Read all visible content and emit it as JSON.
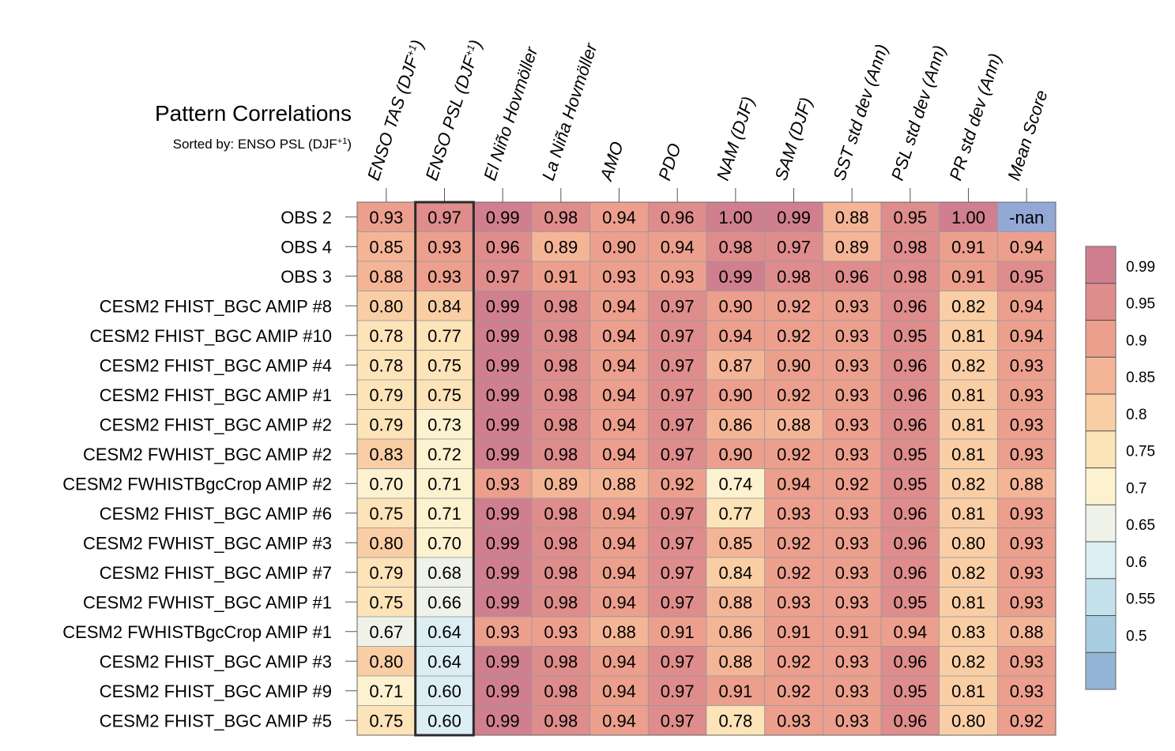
{
  "chart_data": {
    "type": "heatmap",
    "title": "Pattern Correlations",
    "subtitle": "Sorted by: ENSO PSL (DJF",
    "subtitle_sup": "+1",
    "subtitle_end": ")",
    "sorted_column_index": 1,
    "columns": [
      {
        "label": "ENSO TAS (DJF",
        "sup": "+1",
        "end": ")"
      },
      {
        "label": "ENSO PSL (DJF",
        "sup": "+1",
        "end": ")"
      },
      {
        "label": "El Niño Hovmöller",
        "sup": "",
        "end": ""
      },
      {
        "label": "La Niña Hovmöller",
        "sup": "",
        "end": ""
      },
      {
        "label": "AMO",
        "sup": "",
        "end": ""
      },
      {
        "label": "PDO",
        "sup": "",
        "end": ""
      },
      {
        "label": "NAM (DJF)",
        "sup": "",
        "end": ""
      },
      {
        "label": "SAM (DJF)",
        "sup": "",
        "end": ""
      },
      {
        "label": "SST std dev (Ann)",
        "sup": "",
        "end": ""
      },
      {
        "label": "PSL std dev (Ann)",
        "sup": "",
        "end": ""
      },
      {
        "label": "PR std dev (Ann)",
        "sup": "",
        "end": ""
      },
      {
        "label": "Mean Score",
        "sup": "",
        "end": ""
      }
    ],
    "rows": [
      "OBS 2",
      "OBS 4",
      "OBS 3",
      "CESM2 FHIST_BGC AMIP #8",
      "CESM2 FHIST_BGC AMIP #10",
      "CESM2 FHIST_BGC AMIP #4",
      "CESM2 FHIST_BGC AMIP #1",
      "CESM2 FHIST_BGC AMIP #2",
      "CESM2 FWHIST_BGC AMIP #2",
      "CESM2 FWHISTBgcCrop AMIP #2",
      "CESM2 FHIST_BGC AMIP #6",
      "CESM2 FWHIST_BGC AMIP #3",
      "CESM2 FHIST_BGC AMIP #7",
      "CESM2 FWHIST_BGC AMIP #1",
      "CESM2 FWHISTBgcCrop AMIP #1",
      "CESM2 FHIST_BGC AMIP #3",
      "CESM2 FHIST_BGC AMIP #9",
      "CESM2 FHIST_BGC AMIP #5"
    ],
    "values": [
      [
        "0.93",
        "0.97",
        "0.99",
        "0.98",
        "0.94",
        "0.96",
        "1.00",
        "0.99",
        "0.88",
        "0.95",
        "1.00",
        "-nan"
      ],
      [
        "0.85",
        "0.93",
        "0.96",
        "0.89",
        "0.90",
        "0.94",
        "0.98",
        "0.97",
        "0.89",
        "0.98",
        "0.91",
        "0.94"
      ],
      [
        "0.88",
        "0.93",
        "0.97",
        "0.91",
        "0.93",
        "0.93",
        "0.99",
        "0.98",
        "0.96",
        "0.98",
        "0.91",
        "0.95"
      ],
      [
        "0.80",
        "0.84",
        "0.99",
        "0.98",
        "0.94",
        "0.97",
        "0.90",
        "0.92",
        "0.93",
        "0.96",
        "0.82",
        "0.94"
      ],
      [
        "0.78",
        "0.77",
        "0.99",
        "0.98",
        "0.94",
        "0.97",
        "0.94",
        "0.92",
        "0.93",
        "0.95",
        "0.81",
        "0.94"
      ],
      [
        "0.78",
        "0.75",
        "0.99",
        "0.98",
        "0.94",
        "0.97",
        "0.87",
        "0.90",
        "0.93",
        "0.96",
        "0.82",
        "0.93"
      ],
      [
        "0.79",
        "0.75",
        "0.99",
        "0.98",
        "0.94",
        "0.97",
        "0.90",
        "0.92",
        "0.93",
        "0.96",
        "0.81",
        "0.93"
      ],
      [
        "0.79",
        "0.73",
        "0.99",
        "0.98",
        "0.94",
        "0.97",
        "0.86",
        "0.88",
        "0.93",
        "0.96",
        "0.81",
        "0.93"
      ],
      [
        "0.83",
        "0.72",
        "0.99",
        "0.98",
        "0.94",
        "0.97",
        "0.90",
        "0.92",
        "0.93",
        "0.95",
        "0.81",
        "0.93"
      ],
      [
        "0.70",
        "0.71",
        "0.93",
        "0.89",
        "0.88",
        "0.92",
        "0.74",
        "0.94",
        "0.92",
        "0.95",
        "0.82",
        "0.88"
      ],
      [
        "0.75",
        "0.71",
        "0.99",
        "0.98",
        "0.94",
        "0.97",
        "0.77",
        "0.93",
        "0.93",
        "0.96",
        "0.81",
        "0.93"
      ],
      [
        "0.80",
        "0.70",
        "0.99",
        "0.98",
        "0.94",
        "0.97",
        "0.85",
        "0.92",
        "0.93",
        "0.96",
        "0.80",
        "0.93"
      ],
      [
        "0.79",
        "0.68",
        "0.99",
        "0.98",
        "0.94",
        "0.97",
        "0.84",
        "0.92",
        "0.93",
        "0.96",
        "0.82",
        "0.93"
      ],
      [
        "0.75",
        "0.66",
        "0.99",
        "0.98",
        "0.94",
        "0.97",
        "0.88",
        "0.93",
        "0.93",
        "0.95",
        "0.81",
        "0.93"
      ],
      [
        "0.67",
        "0.64",
        "0.93",
        "0.93",
        "0.88",
        "0.91",
        "0.86",
        "0.91",
        "0.91",
        "0.94",
        "0.83",
        "0.88"
      ],
      [
        "0.80",
        "0.64",
        "0.99",
        "0.98",
        "0.94",
        "0.97",
        "0.88",
        "0.92",
        "0.93",
        "0.96",
        "0.82",
        "0.93"
      ],
      [
        "0.71",
        "0.60",
        "0.99",
        "0.98",
        "0.94",
        "0.97",
        "0.91",
        "0.92",
        "0.93",
        "0.95",
        "0.81",
        "0.93"
      ],
      [
        "0.75",
        "0.60",
        "0.99",
        "0.98",
        "0.94",
        "0.97",
        "0.78",
        "0.93",
        "0.93",
        "0.96",
        "0.80",
        "0.92"
      ]
    ],
    "colorbar": {
      "levels": [
        "0.99",
        "0.95",
        "0.9",
        "0.85",
        "0.8",
        "0.75",
        "0.7",
        "0.65",
        "0.6",
        "0.55",
        "0.5"
      ],
      "level_values": [
        0.99,
        0.95,
        0.9,
        0.85,
        0.8,
        0.75,
        0.7,
        0.65,
        0.6,
        0.55,
        0.5
      ],
      "colors_top_to_bottom": [
        "#d07f8e",
        "#df8c8c",
        "#ec9f8d",
        "#f4b597",
        "#f9cea5",
        "#fce3b8",
        "#fcf2d0",
        "#eff2e8",
        "#dceef4",
        "#c5e1ec",
        "#a9cde1",
        "#93b4d4"
      ],
      "nan_color": "#93a8d4"
    }
  }
}
